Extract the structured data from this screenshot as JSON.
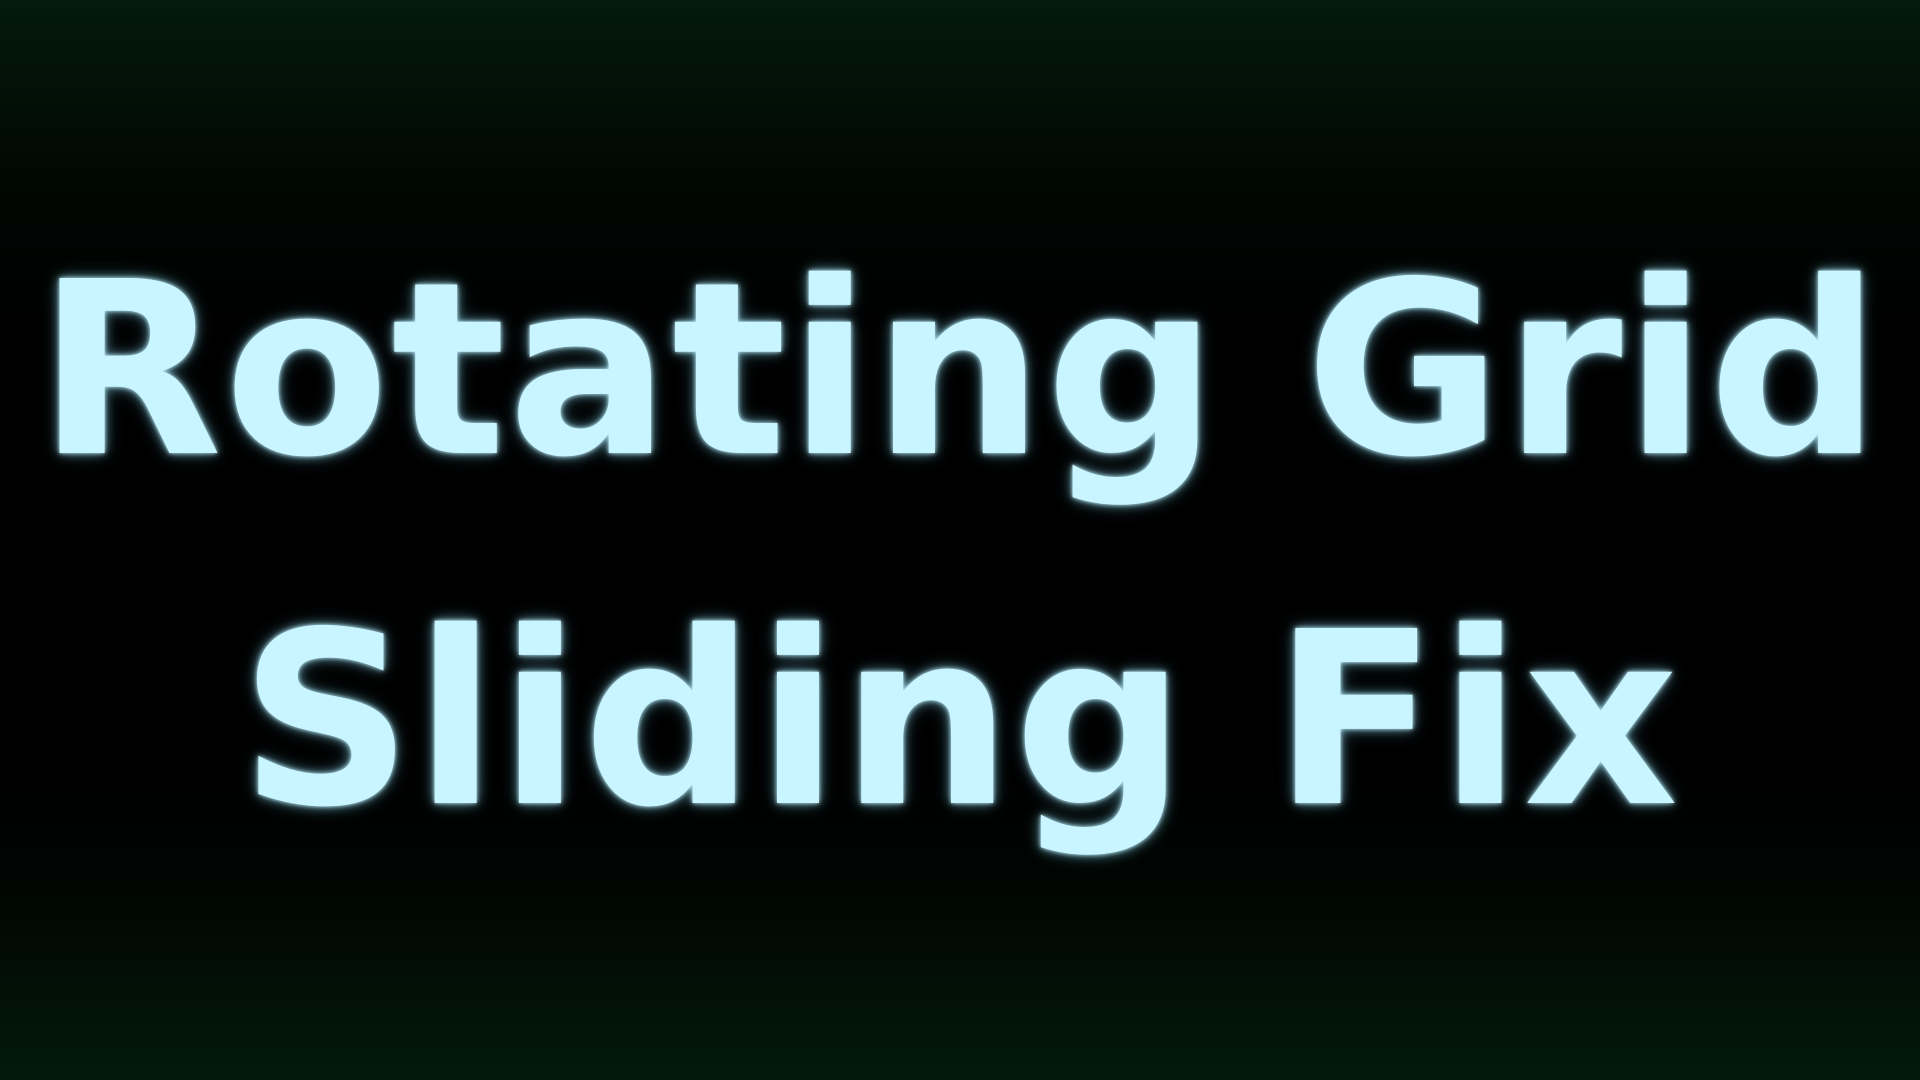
{
  "title": {
    "line1": "Rotating Grid",
    "line2": "Sliding Fix"
  },
  "colors": {
    "text": "#c8f5ff",
    "glow": "#a0ebff",
    "background": "#000000",
    "edge_tint": "#041a0b"
  }
}
